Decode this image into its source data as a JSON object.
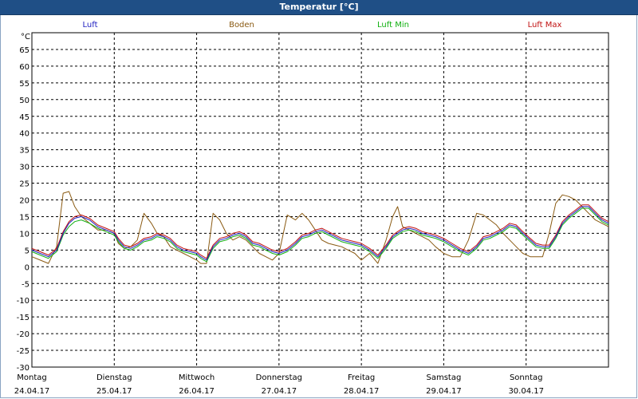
{
  "title": "Temperatur [°C]",
  "chart_data": {
    "type": "line",
    "title": "Temperatur [°C]",
    "ylabel": "°C",
    "ylim": [
      -30,
      70
    ],
    "y_ticks": [
      65,
      60,
      55,
      50,
      45,
      40,
      35,
      30,
      25,
      20,
      15,
      10,
      5,
      0,
      -5,
      -10,
      -15,
      -20,
      -25,
      -30
    ],
    "xlim": [
      0,
      7
    ],
    "x_labels": [
      {
        "day": "Montag",
        "date": "24.04.17"
      },
      {
        "day": "Dienstag",
        "date": "25.04.17"
      },
      {
        "day": "Mittwoch",
        "date": "26.04.17"
      },
      {
        "day": "Donnerstag",
        "date": "27.04.17"
      },
      {
        "day": "Freitag",
        "date": "28.04.17"
      },
      {
        "day": "Samstag",
        "date": "29.04.17"
      },
      {
        "day": "Sonntag",
        "date": "30.04.17"
      }
    ],
    "grid": true,
    "legend_position": "top",
    "series": [
      {
        "name": "Luft",
        "color": "#2020c0",
        "x": [
          0,
          0.1,
          0.2,
          0.3,
          0.38,
          0.45,
          0.52,
          0.6,
          0.7,
          0.8,
          0.9,
          1.0,
          1.05,
          1.12,
          1.2,
          1.28,
          1.36,
          1.45,
          1.52,
          1.6,
          1.68,
          1.76,
          1.84,
          1.92,
          2.0,
          2.05,
          2.12,
          2.2,
          2.28,
          2.36,
          2.44,
          2.52,
          2.6,
          2.68,
          2.76,
          2.84,
          2.92,
          3.0,
          3.1,
          3.2,
          3.28,
          3.36,
          3.44,
          3.52,
          3.6,
          3.68,
          3.76,
          3.84,
          3.92,
          4.0,
          4.1,
          4.2,
          4.3,
          4.38,
          4.44,
          4.5,
          4.58,
          4.66,
          4.74,
          4.82,
          4.9,
          5.0,
          5.1,
          5.2,
          5.3,
          5.4,
          5.48,
          5.56,
          5.64,
          5.72,
          5.8,
          5.88,
          5.96,
          6.05,
          6.12,
          6.2,
          6.28,
          6.36,
          6.44,
          6.52,
          6.6,
          6.68,
          6.76,
          6.84,
          6.92,
          7.0
        ],
        "values": [
          5,
          4,
          3,
          5,
          10,
          13,
          14.5,
          15,
          14,
          12,
          11,
          10,
          8,
          6,
          5.5,
          6.5,
          8,
          8.5,
          9.5,
          9,
          8,
          6,
          5,
          4.5,
          4,
          3,
          2,
          6,
          8,
          8.5,
          9.5,
          10,
          9,
          7,
          6.5,
          5.5,
          4.5,
          4,
          5,
          7,
          9,
          9.5,
          10.5,
          11,
          10,
          9,
          8,
          7.5,
          7,
          6.5,
          5,
          3,
          6,
          9,
          10,
          11,
          11.5,
          11,
          10,
          9.5,
          9,
          8,
          6.5,
          5,
          4,
          6,
          8.5,
          9,
          10,
          11,
          12.5,
          12,
          10,
          8,
          6.5,
          6,
          6,
          9,
          13,
          15,
          16.5,
          18,
          18,
          16,
          14,
          13
        ]
      },
      {
        "name": "Boden",
        "color": "#8a5a12",
        "x": [
          0,
          0.1,
          0.2,
          0.3,
          0.38,
          0.45,
          0.52,
          0.6,
          0.7,
          0.8,
          0.9,
          1.0,
          1.05,
          1.12,
          1.2,
          1.28,
          1.36,
          1.45,
          1.52,
          1.6,
          1.68,
          1.76,
          1.84,
          1.92,
          2.0,
          2.05,
          2.12,
          2.2,
          2.28,
          2.36,
          2.44,
          2.52,
          2.6,
          2.68,
          2.76,
          2.84,
          2.92,
          3.0,
          3.1,
          3.2,
          3.28,
          3.36,
          3.44,
          3.52,
          3.6,
          3.68,
          3.76,
          3.84,
          3.92,
          4.0,
          4.1,
          4.2,
          4.3,
          4.38,
          4.44,
          4.5,
          4.58,
          4.66,
          4.74,
          4.82,
          4.9,
          5.0,
          5.1,
          5.2,
          5.3,
          5.4,
          5.48,
          5.56,
          5.64,
          5.72,
          5.8,
          5.88,
          5.96,
          6.05,
          6.12,
          6.2,
          6.28,
          6.36,
          6.44,
          6.52,
          6.6,
          6.68,
          6.76,
          6.84,
          6.92,
          7.0
        ],
        "values": [
          3,
          2,
          1,
          6,
          22,
          22.5,
          18,
          15,
          13,
          11,
          11,
          10,
          7,
          5.5,
          6,
          8,
          16,
          13,
          10,
          9,
          6,
          5,
          4,
          3,
          2,
          1,
          1,
          16,
          14,
          10,
          8,
          9,
          8,
          6,
          4,
          3,
          2,
          4,
          15.5,
          14,
          16,
          14,
          11,
          8,
          7,
          6.5,
          6,
          5,
          4,
          2,
          4,
          1,
          8,
          15,
          18,
          12,
          11,
          10,
          9,
          8,
          6,
          4,
          3,
          3,
          8,
          16,
          15.5,
          14,
          12.5,
          10,
          8,
          6,
          4,
          3,
          3,
          3,
          10,
          19,
          21.5,
          21,
          20,
          18,
          16,
          14,
          13,
          12
        ]
      },
      {
        "name": "Luft Min",
        "color": "#10b010",
        "x": [
          0,
          0.1,
          0.2,
          0.3,
          0.38,
          0.45,
          0.52,
          0.6,
          0.7,
          0.8,
          0.9,
          1.0,
          1.05,
          1.12,
          1.2,
          1.28,
          1.36,
          1.45,
          1.52,
          1.6,
          1.68,
          1.76,
          1.84,
          1.92,
          2.0,
          2.05,
          2.12,
          2.2,
          2.28,
          2.36,
          2.44,
          2.52,
          2.6,
          2.68,
          2.76,
          2.84,
          2.92,
          3.0,
          3.1,
          3.2,
          3.28,
          3.36,
          3.44,
          3.52,
          3.6,
          3.68,
          3.76,
          3.84,
          3.92,
          4.0,
          4.1,
          4.2,
          4.3,
          4.38,
          4.44,
          4.5,
          4.58,
          4.66,
          4.74,
          4.82,
          4.9,
          5.0,
          5.1,
          5.2,
          5.3,
          5.4,
          5.48,
          5.56,
          5.64,
          5.72,
          5.8,
          5.88,
          5.96,
          6.05,
          6.12,
          6.2,
          6.28,
          6.36,
          6.44,
          6.52,
          6.6,
          6.68,
          6.76,
          6.84,
          6.92,
          7.0
        ],
        "values": [
          4.5,
          3.5,
          2.5,
          4.5,
          9.5,
          12,
          13.5,
          14,
          13,
          11.5,
          10.5,
          9.5,
          7.5,
          5.5,
          5,
          6,
          7.5,
          8,
          9,
          8.5,
          7.5,
          5.5,
          4.5,
          4,
          3.5,
          2.5,
          1.5,
          5.5,
          7.5,
          8,
          9,
          9.5,
          8.5,
          6.5,
          6,
          5,
          4,
          3.5,
          4.5,
          6.5,
          8.5,
          9,
          10,
          10.5,
          9.5,
          8.5,
          7.5,
          7,
          6.5,
          6,
          4.5,
          2.5,
          5.5,
          8.5,
          9.5,
          10.5,
          11,
          10.5,
          9.5,
          9,
          8.5,
          7.5,
          6,
          4.5,
          3.5,
          5.5,
          8,
          8.5,
          9.5,
          10.5,
          12,
          11.5,
          9.5,
          7.5,
          6,
          5.5,
          5.5,
          8.5,
          12.5,
          14.5,
          16,
          17.5,
          17.5,
          15.5,
          13.5,
          12.5
        ]
      },
      {
        "name": "Luft Max",
        "color": "#c01010",
        "x": [
          0,
          0.1,
          0.2,
          0.3,
          0.38,
          0.45,
          0.52,
          0.6,
          0.7,
          0.8,
          0.9,
          1.0,
          1.05,
          1.12,
          1.2,
          1.28,
          1.36,
          1.45,
          1.52,
          1.6,
          1.68,
          1.76,
          1.84,
          1.92,
          2.0,
          2.05,
          2.12,
          2.2,
          2.28,
          2.36,
          2.44,
          2.52,
          2.6,
          2.68,
          2.76,
          2.84,
          2.92,
          3.0,
          3.1,
          3.2,
          3.28,
          3.36,
          3.44,
          3.52,
          3.6,
          3.68,
          3.76,
          3.84,
          3.92,
          4.0,
          4.1,
          4.2,
          4.3,
          4.38,
          4.44,
          4.5,
          4.58,
          4.66,
          4.74,
          4.82,
          4.9,
          5.0,
          5.1,
          5.2,
          5.3,
          5.4,
          5.48,
          5.56,
          5.64,
          5.72,
          5.8,
          5.88,
          5.96,
          6.05,
          6.12,
          6.2,
          6.28,
          6.36,
          6.44,
          6.52,
          6.6,
          6.68,
          6.76,
          6.84,
          6.92,
          7.0
        ],
        "values": [
          5.5,
          4.5,
          3.5,
          5.5,
          10.5,
          13.5,
          15,
          15.5,
          14.5,
          12.5,
          11.5,
          10.5,
          8.5,
          6.5,
          6,
          7,
          8.5,
          9,
          10,
          9.5,
          8.5,
          6.5,
          5.5,
          5,
          4.5,
          3.5,
          2.5,
          6.5,
          8.5,
          9,
          10,
          10.5,
          9.5,
          7.5,
          7,
          6,
          5,
          4.5,
          5.5,
          7.5,
          9.5,
          10,
          11,
          11.5,
          10.5,
          9.5,
          8.5,
          8,
          7.5,
          7,
          5.5,
          3.5,
          6.5,
          9.5,
          10.5,
          11.5,
          12,
          11.5,
          10.5,
          10,
          9.5,
          8.5,
          7,
          5.5,
          4.5,
          6.5,
          9,
          9.5,
          10.5,
          11.5,
          13,
          12.5,
          10.5,
          8.5,
          7,
          6.5,
          6.5,
          9.5,
          13.5,
          15.5,
          17,
          18.5,
          18.5,
          16.5,
          14.5,
          13.5
        ]
      }
    ]
  }
}
